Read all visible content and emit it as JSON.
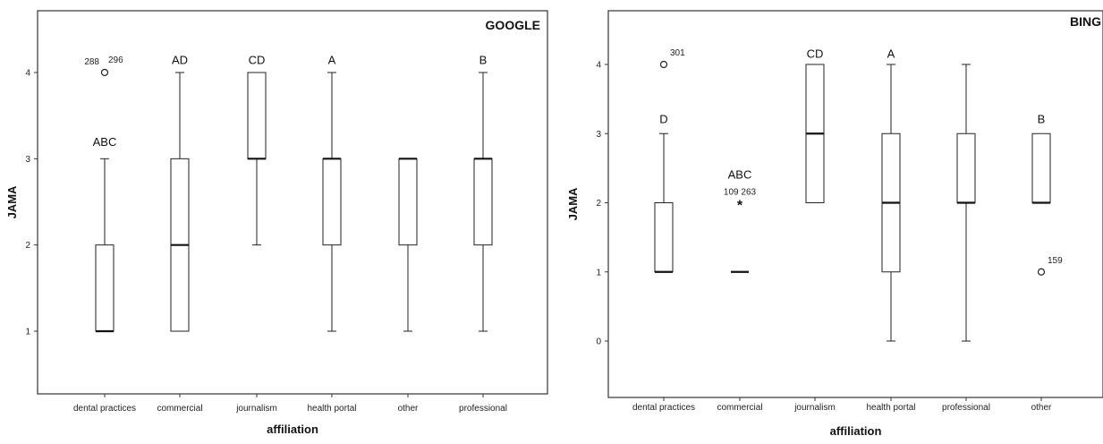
{
  "chart_data": [
    {
      "type": "boxplot",
      "title": "GOOGLE",
      "xlabel": "affiliation",
      "ylabel": "JAMA",
      "ylim": [
        0.3,
        4.6
      ],
      "yticks": [
        1,
        2,
        3,
        4
      ],
      "grid": false,
      "categories": [
        "dental practices",
        "commercial",
        "journalism",
        "health portal",
        "other",
        "professional"
      ],
      "boxes": [
        {
          "category": "dental practices",
          "whisker_low": 1,
          "q1": 1,
          "median": 1,
          "q3": 2,
          "whisker_high": 3
        },
        {
          "category": "commercial",
          "whisker_low": 1,
          "q1": 1,
          "median": 2,
          "q3": 3,
          "whisker_high": 4
        },
        {
          "category": "journalism",
          "whisker_low": 2,
          "q1": 3,
          "median": 3,
          "q3": 4,
          "whisker_high": 4
        },
        {
          "category": "health portal",
          "whisker_low": 1,
          "q1": 2,
          "median": 3,
          "q3": 3,
          "whisker_high": 4
        },
        {
          "category": "other",
          "whisker_low": 1,
          "q1": 2,
          "median": 3,
          "q3": 3,
          "whisker_high": 3
        },
        {
          "category": "professional",
          "whisker_low": 1,
          "q1": 2,
          "median": 3,
          "q3": 3,
          "whisker_high": 4
        }
      ],
      "group_labels": [
        {
          "category": "dental practices",
          "text": "ABC",
          "y": 3.15
        },
        {
          "category": "commercial",
          "text": "AD",
          "y": 4.1
        },
        {
          "category": "journalism",
          "text": "CD",
          "y": 4.1
        },
        {
          "category": "health portal",
          "text": "A",
          "y": 4.1
        },
        {
          "category": "professional",
          "text": "B",
          "y": 4.1
        }
      ],
      "outliers": [
        {
          "category": "dental practices",
          "value": 4,
          "marker": "o",
          "labels": [
            "288",
            "296"
          ]
        }
      ]
    },
    {
      "type": "boxplot",
      "title": "BING",
      "xlabel": "affiliation",
      "ylabel": "JAMA",
      "ylim": [
        -0.8,
        4.8
      ],
      "yticks": [
        0,
        1,
        2,
        3,
        4
      ],
      "grid": false,
      "categories": [
        "dental practices",
        "commercial",
        "journalism",
        "health portal",
        "professional",
        "other"
      ],
      "boxes": [
        {
          "category": "dental practices",
          "whisker_low": 1,
          "q1": 1,
          "median": 1,
          "q3": 2,
          "whisker_high": 3
        },
        {
          "category": "commercial",
          "whisker_low": 1,
          "q1": 1,
          "median": 1,
          "q3": 1,
          "whisker_high": 1
        },
        {
          "category": "journalism",
          "whisker_low": 2,
          "q1": 2,
          "median": 3,
          "q3": 4,
          "whisker_high": 4
        },
        {
          "category": "health portal",
          "whisker_low": 0,
          "q1": 1,
          "median": 2,
          "q3": 3,
          "whisker_high": 4
        },
        {
          "category": "professional",
          "whisker_low": 0,
          "q1": 2,
          "median": 2,
          "q3": 3,
          "whisker_high": 4
        },
        {
          "category": "other",
          "whisker_low": 2,
          "q1": 2,
          "median": 2,
          "q3": 3,
          "whisker_high": 3
        }
      ],
      "group_labels": [
        {
          "category": "dental practices",
          "text": "D",
          "y": 3.15
        },
        {
          "category": "commercial",
          "text": "ABC",
          "y": 2.35
        },
        {
          "category": "journalism",
          "text": "CD",
          "y": 4.1
        },
        {
          "category": "health portal",
          "text": "A",
          "y": 4.1
        },
        {
          "category": "other",
          "text": "B",
          "y": 3.15
        }
      ],
      "outliers": [
        {
          "category": "dental practices",
          "value": 4,
          "marker": "o",
          "labels": [
            "301"
          ]
        },
        {
          "category": "commercial",
          "value": 2,
          "marker": "*",
          "labels": [
            "109",
            "263"
          ]
        },
        {
          "category": "other",
          "value": 1,
          "marker": "o",
          "labels": [
            "159"
          ]
        }
      ]
    }
  ]
}
